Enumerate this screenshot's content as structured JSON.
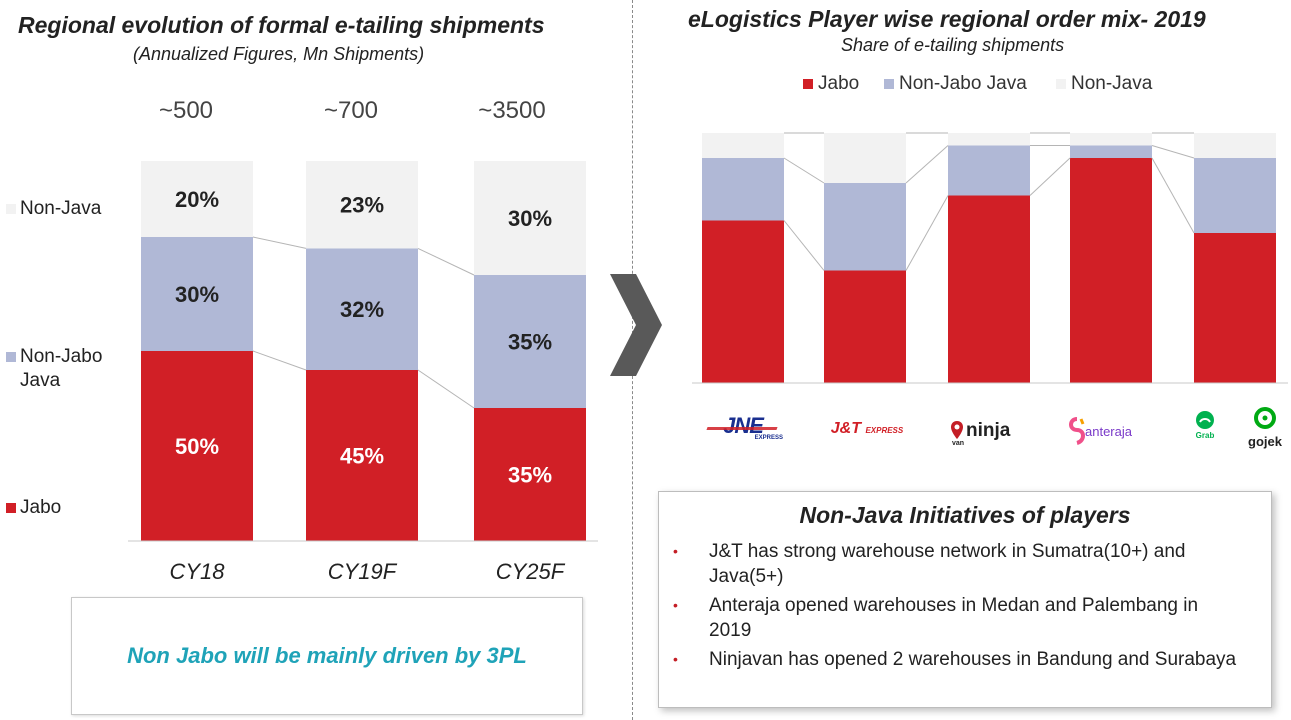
{
  "left": {
    "title": "Regional evolution of formal e-tailing shipments",
    "subtitle": "(Annualized Figures, Mn Shipments)",
    "callout": "Non Jabo will be mainly driven by 3PL"
  },
  "right": {
    "title": "eLogistics Player wise regional order mix- 2019",
    "subtitle": "Share of e-tailing shipments",
    "initiatives_title": "Non-Java Initiatives of players",
    "initiatives": [
      "J&T has strong warehouse network in Sumatra(10+) and Java(5+)",
      "Anteraja opened warehouses in Medan and Palembang in 2019",
      "Ninjavan has opened 2 warehouses in Bandung and Surabaya"
    ],
    "bullet": "•"
  },
  "logos": {
    "jne": "JNE",
    "jne_sub": "EXPRESS",
    "jnt": "J&T",
    "jnt_sub": "EXPRESS",
    "ninja": "ninja",
    "ninja_sub": "van",
    "anteraja": "anteraja",
    "grab": "Grab",
    "gojek": "gojek"
  },
  "colors": {
    "jabo": "#d11f26",
    "non_jabo_java": "#b0b8d6",
    "non_java": "#f2f2f2",
    "callout_text": "#1fa3b8",
    "arrow": "#595959"
  },
  "chart_data": [
    {
      "type": "bar",
      "stacked": true,
      "normalized": true,
      "title": "Regional evolution of formal e-tailing shipments",
      "subtitle": "(Annualized Figures, Mn Shipments)",
      "categories": [
        "CY18",
        "CY19F",
        "CY25F"
      ],
      "totals": [
        "~500",
        "~700",
        "~3500"
      ],
      "series": [
        {
          "name": "Jabo",
          "values": [
            50,
            45,
            35
          ],
          "labels": [
            "50%",
            "45%",
            "35%"
          ]
        },
        {
          "name": "Non-Jabo Java",
          "values": [
            30,
            32,
            35
          ],
          "labels": [
            "30%",
            "32%",
            "35%"
          ]
        },
        {
          "name": "Non-Java",
          "values": [
            20,
            23,
            30
          ],
          "labels": [
            "20%",
            "23%",
            "30%"
          ]
        }
      ],
      "legend": [
        "Non-Java",
        "Non-Jabo\nJava",
        "Jabo"
      ],
      "legend_position": "left",
      "ylim": [
        0,
        100
      ]
    },
    {
      "type": "bar",
      "stacked": true,
      "normalized": true,
      "title": "eLogistics Player wise regional order mix- 2019",
      "subtitle": "Share of e-tailing shipments",
      "categories": [
        "JNE",
        "J&T Express",
        "Ninja Van",
        "Anteraja",
        "Grab / Gojek"
      ],
      "series": [
        {
          "name": "Jabo",
          "values": [
            65,
            45,
            75,
            90,
            60
          ]
        },
        {
          "name": "Non-Jabo Java",
          "values": [
            25,
            35,
            20,
            5,
            30
          ]
        },
        {
          "name": "Non-Java",
          "values": [
            10,
            20,
            5,
            5,
            10
          ]
        }
      ],
      "legend": [
        "Jabo",
        "Non-Jabo Java",
        "Non-Java"
      ],
      "legend_position": "top",
      "ylim": [
        0,
        100
      ]
    }
  ]
}
